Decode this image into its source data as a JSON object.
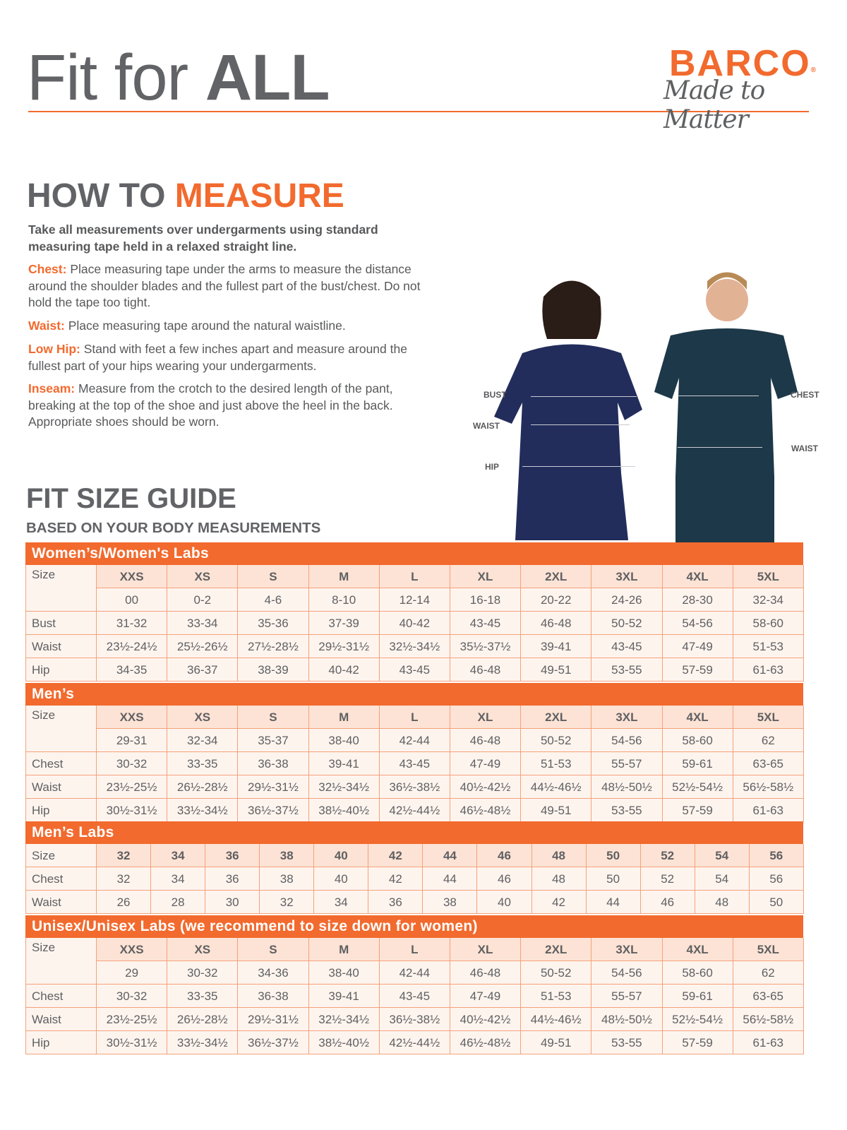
{
  "header": {
    "title_light": "Fit for ",
    "title_bold": "ALL",
    "brand": "BARCO",
    "brand_mark": "®",
    "tagline": "Made to Matter"
  },
  "how_to": {
    "title_gray": "HOW TO ",
    "title_orange": "MEASURE",
    "intro": "Take all measurements over undergarments using standard measuring tape held in a relaxed straight line.",
    "items": [
      {
        "term": "Chest:",
        "text": "Place measuring tape under the arms to measure the distance around the shoulder blades and the fullest part of the bust/chest. Do not hold the tape too tight."
      },
      {
        "term": "Waist:",
        "text": "Place measuring tape around the natural waistline."
      },
      {
        "term": "Low Hip:",
        "text": "Stand with feet a few inches apart and measure around the fullest part of your hips wearing your undergarments."
      },
      {
        "term": "Inseam:",
        "text": "Measure from the crotch to the desired length of the pant, breaking at the top of the shoe and just above the heel in the back. Appropriate shoes should be worn."
      }
    ]
  },
  "figure": {
    "women_labels": [
      "BUST",
      "WAIST",
      "HIP"
    ],
    "men_labels": [
      "CHEST",
      "WAIST"
    ]
  },
  "guide": {
    "title": "FIT SIZE GUIDE",
    "subtitle": "BASED ON YOUR BODY MEASUREMENTS"
  },
  "colors": {
    "accent": "#f26a2e",
    "navy": "#1f2a52",
    "text": "#5f6062"
  },
  "tables": [
    {
      "title": "Women’s/Women's Labs",
      "size_label": "Size",
      "sizes": [
        "XXS",
        "XS",
        "S",
        "M",
        "L",
        "XL",
        "2XL",
        "3XL",
        "4XL",
        "5XL"
      ],
      "numeric": [
        "00",
        "0-2",
        "4-6",
        "8-10",
        "12-14",
        "16-18",
        "20-22",
        "24-26",
        "28-30",
        "32-34"
      ],
      "rows": [
        {
          "label": "Bust",
          "values": [
            "31-32",
            "33-34",
            "35-36",
            "37-39",
            "40-42",
            "43-45",
            "46-48",
            "50-52",
            "54-56",
            "58-60"
          ]
        },
        {
          "label": "Waist",
          "values": [
            "23½-24½",
            "25½-26½",
            "27½-28½",
            "29½-31½",
            "32½-34½",
            "35½-37½",
            "39-41",
            "43-45",
            "47-49",
            "51-53"
          ]
        },
        {
          "label": "Hip",
          "values": [
            "34-35",
            "36-37",
            "38-39",
            "40-42",
            "43-45",
            "46-48",
            "49-51",
            "53-55",
            "57-59",
            "61-63"
          ]
        }
      ]
    },
    {
      "title": "Men’s",
      "size_label": "Size",
      "sizes": [
        "XXS",
        "XS",
        "S",
        "M",
        "L",
        "XL",
        "2XL",
        "3XL",
        "4XL",
        "5XL"
      ],
      "numeric": [
        "29-31",
        "32-34",
        "35-37",
        "38-40",
        "42-44",
        "46-48",
        "50-52",
        "54-56",
        "58-60",
        "62"
      ],
      "rows": [
        {
          "label": "Chest",
          "values": [
            "30-32",
            "33-35",
            "36-38",
            "39-41",
            "43-45",
            "47-49",
            "51-53",
            "55-57",
            "59-61",
            "63-65"
          ]
        },
        {
          "label": "Waist",
          "values": [
            "23½-25½",
            "26½-28½",
            "29½-31½",
            "32½-34½",
            "36½-38½",
            "40½-42½",
            "44½-46½",
            "48½-50½",
            "52½-54½",
            "56½-58½"
          ]
        },
        {
          "label": "Hip",
          "values": [
            "30½-31½",
            "33½-34½",
            "36½-37½",
            "38½-40½",
            "42½-44½",
            "46½-48½",
            "49-51",
            "53-55",
            "57-59",
            "61-63"
          ]
        }
      ]
    },
    {
      "title": "Men’s Labs",
      "size_label": "Size",
      "sizes": [
        "32",
        "34",
        "36",
        "38",
        "40",
        "42",
        "44",
        "46",
        "48",
        "50",
        "52",
        "54",
        "56"
      ],
      "rows": [
        {
          "label": "Chest",
          "values": [
            "32",
            "34",
            "36",
            "38",
            "40",
            "42",
            "44",
            "46",
            "48",
            "50",
            "52",
            "54",
            "56"
          ]
        },
        {
          "label": "Waist",
          "values": [
            "26",
            "28",
            "30",
            "32",
            "34",
            "36",
            "38",
            "40",
            "42",
            "44",
            "46",
            "48",
            "50"
          ]
        }
      ]
    },
    {
      "title": "Unisex/Unisex Labs (we recommend to size down for women)",
      "size_label": "Size",
      "sizes": [
        "XXS",
        "XS",
        "S",
        "M",
        "L",
        "XL",
        "2XL",
        "3XL",
        "4XL",
        "5XL"
      ],
      "numeric": [
        "29",
        "30-32",
        "34-36",
        "38-40",
        "42-44",
        "46-48",
        "50-52",
        "54-56",
        "58-60",
        "62"
      ],
      "rows": [
        {
          "label": "Chest",
          "values": [
            "30-32",
            "33-35",
            "36-38",
            "39-41",
            "43-45",
            "47-49",
            "51-53",
            "55-57",
            "59-61",
            "63-65"
          ]
        },
        {
          "label": "Waist",
          "values": [
            "23½-25½",
            "26½-28½",
            "29½-31½",
            "32½-34½",
            "36½-38½",
            "40½-42½",
            "44½-46½",
            "48½-50½",
            "52½-54½",
            "56½-58½"
          ]
        },
        {
          "label": "Hip",
          "values": [
            "30½-31½",
            "33½-34½",
            "36½-37½",
            "38½-40½",
            "42½-44½",
            "46½-48½",
            "49-51",
            "53-55",
            "57-59",
            "61-63"
          ]
        }
      ]
    }
  ]
}
